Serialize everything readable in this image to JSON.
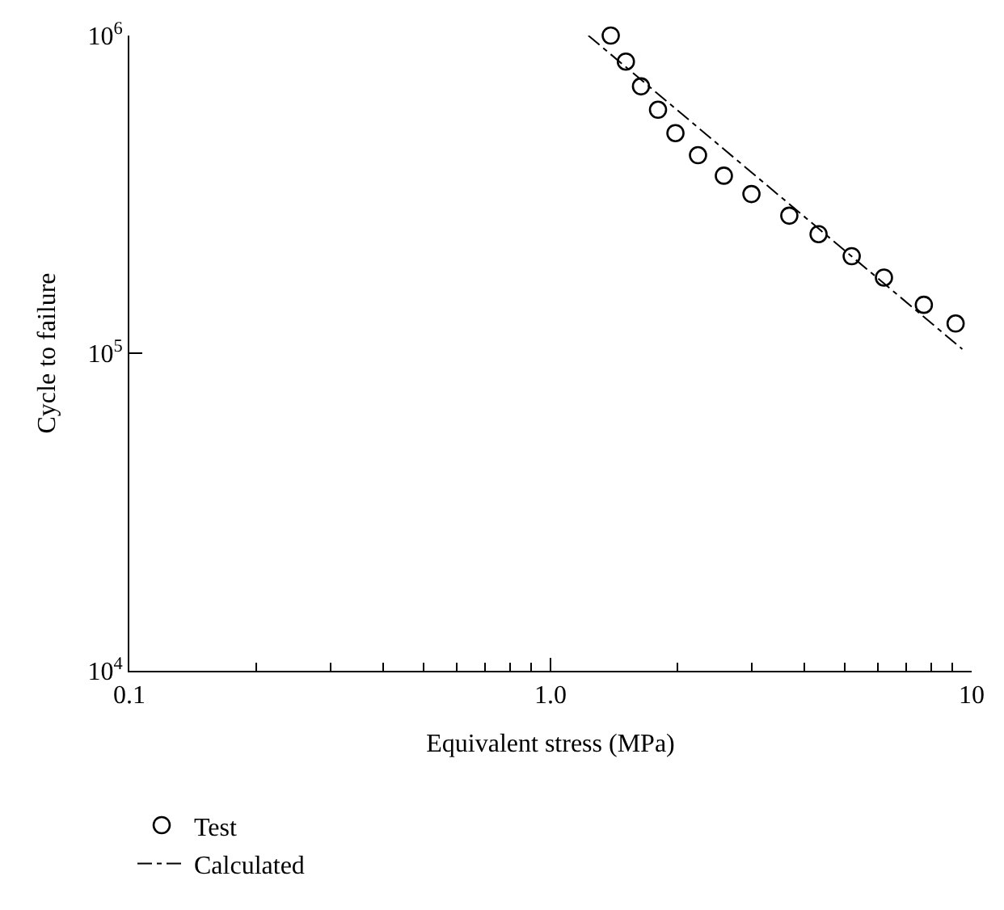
{
  "chart_data": {
    "type": "scatter",
    "xlabel": "Equivalent stress (MPa)",
    "ylabel": "Cycle to failure",
    "log": "xy",
    "xlim": [
      0.1,
      10
    ],
    "xticks": [
      0.1,
      {
        "value": 1,
        "label": "1.0"
      },
      10
    ],
    "ylim": [
      10000,
      1000000
    ],
    "yticks": [
      {
        "value": 10000,
        "label": "10$^{4}$"
      },
      {
        "value": 100000,
        "label": "10$^{5}$"
      },
      {
        "value": 1000000,
        "label": "10$^{6}$"
      }
    ],
    "legend": "bottom left",
    "series": [
      {
        "name": "Test",
        "marker": "circle",
        "color": "#000000",
        "x": [
          1.39,
          1.51,
          1.64,
          1.8,
          1.98,
          2.24,
          2.58,
          3.0,
          3.69,
          4.33,
          5.19,
          6.19,
          7.7,
          9.16
        ],
        "values": [
          1000000,
          828000,
          692000,
          584000,
          493000,
          420000,
          362000,
          317000,
          271000,
          237000,
          202000,
          173000,
          142000,
          124000
        ]
      },
      {
        "name": "Calculated",
        "type": "line",
        "marker": "none",
        "line_style": "dashdot",
        "color": "#000000",
        "x": [
          1.23,
          9.5
        ],
        "values": [
          1000000,
          103000
        ]
      }
    ]
  }
}
